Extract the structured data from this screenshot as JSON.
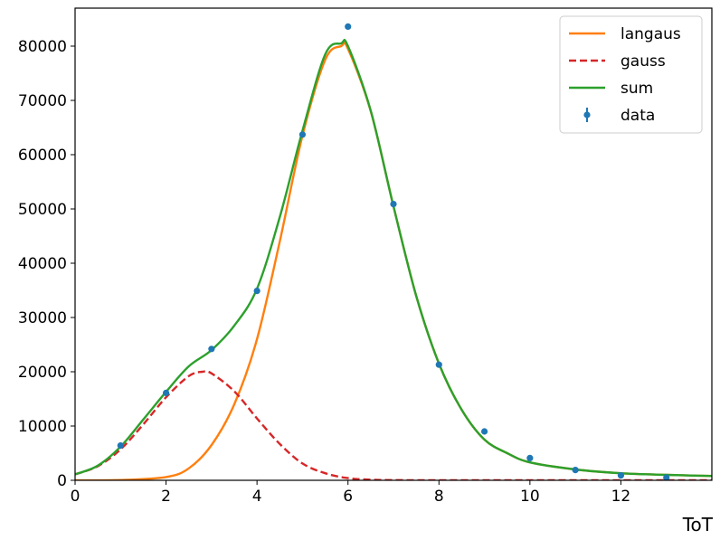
{
  "chart_data": {
    "type": "line",
    "xlabel": "ToT",
    "ylabel": "",
    "xlim": [
      0,
      14
    ],
    "ylim": [
      0,
      87000
    ],
    "xticks": [
      0,
      2,
      4,
      6,
      8,
      10,
      12
    ],
    "yticks": [
      0,
      10000,
      20000,
      30000,
      40000,
      50000,
      60000,
      70000,
      80000
    ],
    "grid": false,
    "legend_position": "top-right",
    "colors": {
      "langaus": "#ff7f0e",
      "gauss": "#d62728",
      "sum": "#2ca02c",
      "data": "#1f77b4"
    },
    "series": [
      {
        "name": "langaus",
        "style": "solid",
        "x": [
          0,
          1,
          2,
          2.5,
          3,
          3.5,
          4,
          4.5,
          5,
          5.5,
          5.85,
          6,
          6.5,
          7,
          7.5,
          8,
          8.5,
          9,
          9.5,
          10,
          11,
          12,
          13,
          14
        ],
        "y": [
          0,
          50,
          600,
          2200,
          6500,
          14000,
          26000,
          44000,
          63500,
          77500,
          80000,
          79500,
          68000,
          50500,
          34000,
          21500,
          13000,
          7500,
          5000,
          3300,
          2000,
          1300,
          1000,
          800
        ]
      },
      {
        "name": "gauss",
        "style": "dashed",
        "x": [
          0,
          0.5,
          1,
          1.5,
          2,
          2.5,
          2.8,
          3,
          3.5,
          4,
          4.5,
          5,
          5.5,
          6,
          6.5,
          7,
          8,
          10,
          12,
          14
        ],
        "y": [
          1100,
          2600,
          5700,
          10300,
          15300,
          19200,
          20000,
          19700,
          16400,
          11400,
          6700,
          3100,
          1300,
          400,
          120,
          30,
          0,
          0,
          0,
          0
        ]
      },
      {
        "name": "sum",
        "style": "solid",
        "x": [
          0,
          0.5,
          1,
          1.5,
          2,
          2.5,
          3,
          3.5,
          4,
          4.5,
          5,
          5.5,
          5.85,
          6,
          6.5,
          7,
          7.5,
          8,
          8.5,
          9,
          9.5,
          10,
          11,
          12,
          13,
          14
        ],
        "y": [
          1100,
          2700,
          6200,
          11200,
          16300,
          21000,
          24000,
          28500,
          35300,
          48500,
          64400,
          78500,
          80500,
          80000,
          68100,
          50500,
          34000,
          21500,
          13000,
          7500,
          5000,
          3300,
          2000,
          1300,
          1000,
          800
        ]
      }
    ],
    "points": {
      "name": "data",
      "x": [
        1,
        2,
        3,
        4,
        5,
        6,
        7,
        8,
        9,
        10,
        11,
        12,
        13
      ],
      "y": [
        6400,
        16100,
        24200,
        34900,
        63700,
        83600,
        50900,
        21300,
        9000,
        4100,
        1900,
        900,
        500
      ]
    }
  }
}
